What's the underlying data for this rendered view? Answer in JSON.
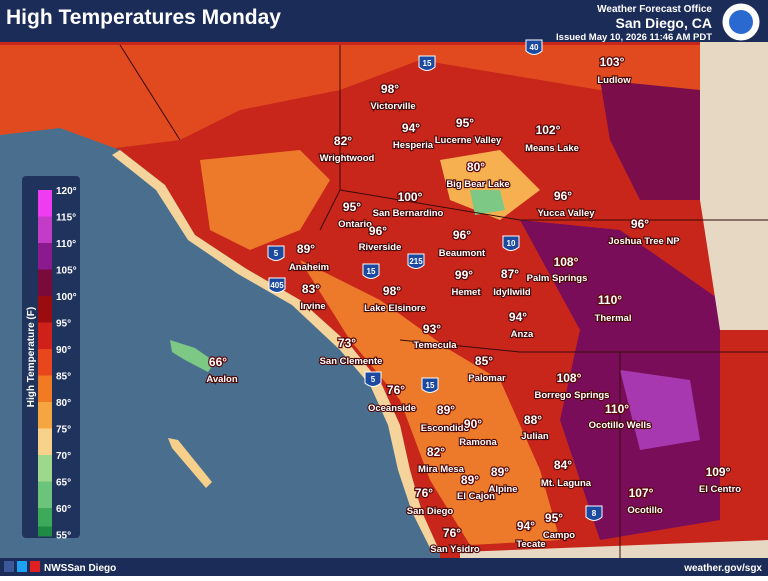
{
  "header": {
    "title": "High Temperatures Monday",
    "office_label": "Weather Forecast Office",
    "office_name": "San Diego, CA",
    "issued": "Issued May 10, 2026 11:46 AM PDT"
  },
  "legend": {
    "title": "High Temperature (F)",
    "entries": [
      {
        "label": "120°",
        "color": "#f03cf0"
      },
      {
        "label": "115°",
        "color": "#c23cc8"
      },
      {
        "label": "110°",
        "color": "#8a1a8e"
      },
      {
        "label": "105°",
        "color": "#7a0a3c"
      },
      {
        "label": "100°",
        "color": "#9a0c10"
      },
      {
        "label": "95°",
        "color": "#d0201a"
      },
      {
        "label": "90°",
        "color": "#e8461c"
      },
      {
        "label": "85°",
        "color": "#f27a22"
      },
      {
        "label": "80°",
        "color": "#f6a640"
      },
      {
        "label": "75°",
        "color": "#f8d28a"
      },
      {
        "label": "70°",
        "color": "#9ed88c"
      },
      {
        "label": "65°",
        "color": "#6cc47c"
      },
      {
        "label": "60°",
        "color": "#3caa5a"
      },
      {
        "label": "55°",
        "color": "#1e8a44"
      }
    ]
  },
  "cities": [
    {
      "temp": "103°",
      "name": "Ludlow"
    },
    {
      "temp": "98°",
      "name": "Victorville"
    },
    {
      "temp": "94°",
      "name": "Hesperia"
    },
    {
      "temp": "95°",
      "name": "Lucerne Valley"
    },
    {
      "temp": "102°",
      "name": "Means Lake"
    },
    {
      "temp": "82°",
      "name": "Wrightwood"
    },
    {
      "temp": "80°",
      "name": "Big Bear Lake"
    },
    {
      "temp": "100°",
      "name": "San Bernardino"
    },
    {
      "temp": "96°",
      "name": "Yucca Valley"
    },
    {
      "temp": "95°",
      "name": "Ontario"
    },
    {
      "temp": "96°",
      "name": "Riverside"
    },
    {
      "temp": "96°",
      "name": "Beaumont"
    },
    {
      "temp": "96°",
      "name": "Joshua Tree NP"
    },
    {
      "temp": "89°",
      "name": "Anaheim"
    },
    {
      "temp": "108°",
      "name": "Palm Springs"
    },
    {
      "temp": "99°",
      "name": "Hemet"
    },
    {
      "temp": "87°",
      "name": "Idyllwild"
    },
    {
      "temp": "83°",
      "name": "Irvine"
    },
    {
      "temp": "98°",
      "name": "Lake Elsinore"
    },
    {
      "temp": "110°",
      "name": "Thermal"
    },
    {
      "temp": "94°",
      "name": "Anza"
    },
    {
      "temp": "93°",
      "name": "Temecula"
    },
    {
      "temp": "73°",
      "name": "San Clemente"
    },
    {
      "temp": "66°",
      "name": "Avalon"
    },
    {
      "temp": "85°",
      "name": "Palomar"
    },
    {
      "temp": "108°",
      "name": "Borrego Springs"
    },
    {
      "temp": "76°",
      "name": "Oceanside"
    },
    {
      "temp": "89°",
      "name": "Escondido"
    },
    {
      "temp": "90°",
      "name": "Ramona"
    },
    {
      "temp": "88°",
      "name": "Julian"
    },
    {
      "temp": "110°",
      "name": "Ocotillo Wells"
    },
    {
      "temp": "82°",
      "name": "Mira Mesa"
    },
    {
      "temp": "89°",
      "name": "El Cajon"
    },
    {
      "temp": "89°",
      "name": "Alpine"
    },
    {
      "temp": "84°",
      "name": "Mt. Laguna"
    },
    {
      "temp": "109°",
      "name": "El Centro"
    },
    {
      "temp": "107°",
      "name": "Ocotillo"
    },
    {
      "temp": "76°",
      "name": "San Diego"
    },
    {
      "temp": "94°",
      "name": "Tecate"
    },
    {
      "temp": "95°",
      "name": "Campo"
    },
    {
      "temp": "76°",
      "name": "San Ysidro"
    }
  ],
  "highways": [
    "15",
    "40",
    "5",
    "10",
    "215",
    "15",
    "405",
    "5",
    "15",
    "8"
  ],
  "footer": {
    "handle": "NWSSan Diego",
    "website": "weather.gov/sgx"
  }
}
